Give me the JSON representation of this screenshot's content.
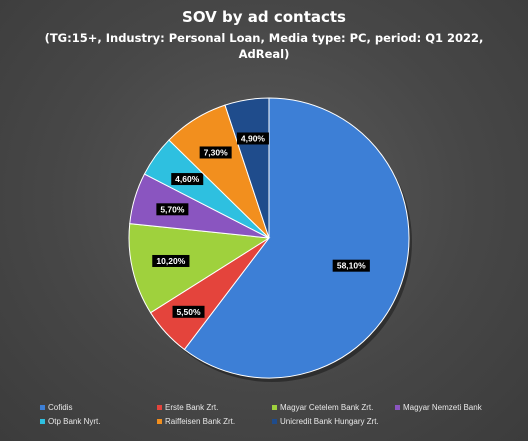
{
  "chart_data": {
    "type": "pie",
    "title": "SOV by ad contacts",
    "subtitle": "(TG:15+, Industry: Personal Loan, Media type: PC, period: Q1 2022, AdReal)",
    "slices": [
      {
        "name": "Cofidis",
        "value": 58.1,
        "label": "58,10%",
        "color": "#3d7fd6"
      },
      {
        "name": "Erste Bank Zrt.",
        "value": 5.5,
        "label": "5,50%",
        "color": "#e4443c"
      },
      {
        "name": "Magyar Cetelem Bank Zrt.",
        "value": 10.2,
        "label": "10,20%",
        "color": "#9fd13d"
      },
      {
        "name": "Magyar Nemzeti Bank",
        "value": 5.7,
        "label": "5,70%",
        "color": "#8a55c0"
      },
      {
        "name": "Otp Bank Nyrt.",
        "value": 4.6,
        "label": "4,60%",
        "color": "#2ec0e0"
      },
      {
        "name": "Raiffeisen Bank Zrt.",
        "value": 7.3,
        "label": "7,30%",
        "color": "#f28f1e"
      },
      {
        "name": "Unicredit Bank Hungary Zrt.",
        "value": 4.9,
        "label": "4,90%",
        "color": "#1f4c8c"
      }
    ],
    "legend_position": "bottom"
  }
}
